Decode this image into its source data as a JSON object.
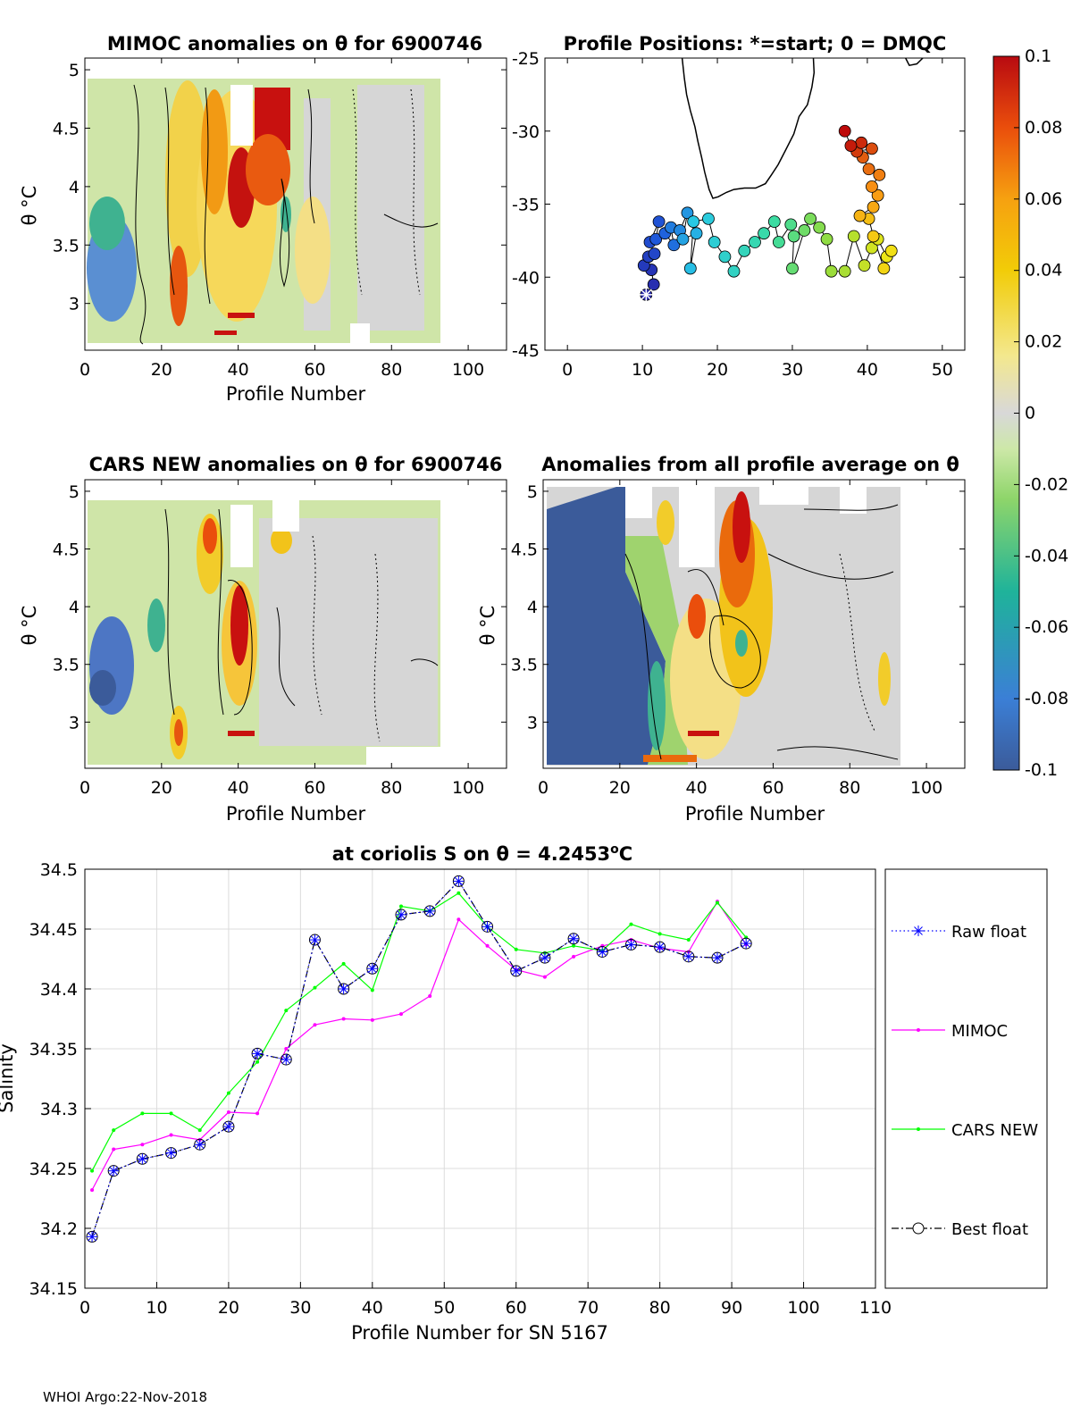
{
  "chart_data": [
    {
      "type": "heatmap",
      "title": "MIMOC anomalies on θ  for 6900746",
      "xlabel": "Profile Number",
      "ylabel": "θ °C",
      "xlim": [
        0,
        110
      ],
      "ylim": [
        2.6,
        5.1
      ],
      "xticks": [
        "0",
        "20",
        "40",
        "60",
        "80",
        "100"
      ],
      "yticks": [
        "3",
        "3.5",
        "4",
        "4.5",
        "5"
      ],
      "xtick_values": [
        0,
        20,
        40,
        60,
        80,
        100
      ],
      "ytick_values": [
        3,
        3.5,
        4,
        4.5,
        5
      ]
    },
    {
      "type": "scatter",
      "title": "Profile Positions: *=start; 0 = DMQC",
      "xlim": [
        -3,
        53
      ],
      "ylim": [
        -45,
        -25
      ],
      "xticks": [
        "0",
        "10",
        "20",
        "30",
        "40",
        "50"
      ],
      "yticks": [
        "-25",
        "-30",
        "-35",
        "-40",
        "-45"
      ],
      "xtick_values": [
        0,
        10,
        20,
        30,
        40,
        50
      ],
      "ytick_values": [
        -25,
        -30,
        -35,
        -40,
        -45
      ],
      "track": [
        [
          10.5,
          -41.2
        ],
        [
          11.5,
          -40.5
        ],
        [
          11.2,
          -39.5
        ],
        [
          10.2,
          -39.2
        ],
        [
          10.8,
          -38.6
        ],
        [
          11.6,
          -38.4
        ],
        [
          11.0,
          -37.6
        ],
        [
          12.2,
          -36.2
        ],
        [
          11.8,
          -37.4
        ],
        [
          13.0,
          -37.0
        ],
        [
          14.2,
          -37.8
        ],
        [
          13.8,
          -36.6
        ],
        [
          15.0,
          -36.8
        ],
        [
          16.0,
          -35.6
        ],
        [
          15.4,
          -37.4
        ],
        [
          17.2,
          -37.0
        ],
        [
          16.4,
          -39.4
        ],
        [
          16.8,
          -36.2
        ],
        [
          18.8,
          -36.0
        ],
        [
          19.6,
          -37.6
        ],
        [
          21.0,
          -38.6
        ],
        [
          22.2,
          -39.6
        ],
        [
          23.6,
          -38.2
        ],
        [
          25.0,
          -37.6
        ],
        [
          26.2,
          -37.0
        ],
        [
          27.6,
          -36.2
        ],
        [
          28.2,
          -37.6
        ],
        [
          29.8,
          -36.4
        ],
        [
          30.2,
          -37.2
        ],
        [
          30.0,
          -39.4
        ],
        [
          31.6,
          -36.8
        ],
        [
          32.4,
          -36.0
        ],
        [
          33.6,
          -36.6
        ],
        [
          34.6,
          -37.4
        ],
        [
          35.2,
          -39.6
        ],
        [
          37.0,
          -39.6
        ],
        [
          38.2,
          -37.2
        ],
        [
          39.6,
          -39.2
        ],
        [
          40.6,
          -38.0
        ],
        [
          41.4,
          -37.4
        ],
        [
          42.6,
          -38.6
        ],
        [
          43.2,
          -38.2
        ],
        [
          42.2,
          -39.4
        ],
        [
          40.8,
          -37.2
        ],
        [
          40.2,
          -36.0
        ],
        [
          39.0,
          -35.8
        ],
        [
          40.8,
          -35.2
        ],
        [
          41.4,
          -34.4
        ],
        [
          40.6,
          -33.8
        ],
        [
          41.6,
          -33.0
        ],
        [
          40.2,
          -32.6
        ],
        [
          39.4,
          -31.8
        ],
        [
          40.6,
          -31.2
        ],
        [
          38.6,
          -31.4
        ],
        [
          39.2,
          -30.8
        ],
        [
          37.8,
          -31.0
        ],
        [
          37.0,
          -30.0
        ]
      ],
      "coast": [
        [
          15.3,
          -25.0
        ],
        [
          15.6,
          -26.4
        ],
        [
          15.9,
          -27.5
        ],
        [
          16.4,
          -28.6
        ],
        [
          17.0,
          -29.7
        ],
        [
          17.4,
          -30.7
        ],
        [
          17.9,
          -31.8
        ],
        [
          18.3,
          -32.8
        ],
        [
          18.9,
          -34.0
        ],
        [
          19.4,
          -34.6
        ],
        [
          20.1,
          -34.5
        ],
        [
          21.2,
          -34.2
        ],
        [
          22.2,
          -34.0
        ],
        [
          23.6,
          -33.9
        ],
        [
          25.1,
          -33.9
        ],
        [
          26.4,
          -33.6
        ],
        [
          27.2,
          -33.0
        ],
        [
          28.1,
          -32.3
        ],
        [
          29.0,
          -31.4
        ],
        [
          30.2,
          -30.2
        ],
        [
          30.9,
          -29.0
        ],
        [
          32.0,
          -28.2
        ],
        [
          32.6,
          -27.0
        ],
        [
          32.9,
          -26.0
        ],
        [
          32.8,
          -25.0
        ]
      ],
      "coast2": [
        [
          45.1,
          -25.0
        ],
        [
          45.6,
          -25.5
        ],
        [
          46.6,
          -25.4
        ],
        [
          47.4,
          -25.0
        ]
      ]
    },
    {
      "type": "heatmap",
      "title": "CARS NEW anomalies on θ for 6900746",
      "xlabel": "Profile Number",
      "ylabel": "θ °C",
      "xlim": [
        0,
        110
      ],
      "ylim": [
        2.6,
        5.1
      ],
      "xticks": [
        "0",
        "20",
        "40",
        "60",
        "80",
        "100"
      ],
      "yticks": [
        "3",
        "3.5",
        "4",
        "4.5",
        "5"
      ],
      "xtick_values": [
        0,
        20,
        40,
        60,
        80,
        100
      ],
      "ytick_values": [
        3,
        3.5,
        4,
        4.5,
        5
      ]
    },
    {
      "type": "heatmap",
      "title": "Anomalies from all profile average on θ",
      "xlabel": "Profile Number",
      "ylabel": "θ °C",
      "xlim": [
        0,
        110
      ],
      "ylim": [
        2.6,
        5.1
      ],
      "xticks": [
        "0",
        "20",
        "40",
        "60",
        "80",
        "100"
      ],
      "yticks": [
        "3",
        "3.5",
        "4",
        "4.5",
        "5"
      ],
      "xtick_values": [
        0,
        20,
        40,
        60,
        80,
        100
      ],
      "ytick_values": [
        3,
        3.5,
        4,
        4.5,
        5
      ]
    },
    {
      "type": "line",
      "title_prefix": "at coriolis S on θ = 4.2453",
      "title_sup": "o",
      "title_suffix": "C",
      "xlabel": "Profile Number for SN 5167",
      "ylabel": "Salinity",
      "xlim": [
        0,
        110
      ],
      "ylim": [
        34.15,
        34.5
      ],
      "xticks": [
        "0",
        "10",
        "20",
        "30",
        "40",
        "50",
        "60",
        "70",
        "80",
        "90",
        "100",
        "110"
      ],
      "yticks": [
        "34.15",
        "34.2",
        "34.25",
        "34.3",
        "34.35",
        "34.4",
        "34.45",
        "34.5"
      ],
      "xtick_values": [
        0,
        10,
        20,
        30,
        40,
        50,
        60,
        70,
        80,
        90,
        100,
        110
      ],
      "ytick_values": [
        34.15,
        34.2,
        34.25,
        34.3,
        34.35,
        34.4,
        34.45,
        34.5
      ],
      "x": [
        1,
        4,
        8,
        12,
        16,
        20,
        24,
        28,
        32,
        36,
        40,
        44,
        48,
        52,
        56,
        60,
        64,
        68,
        72,
        76,
        80,
        84,
        88,
        92
      ],
      "series": [
        {
          "name": "Raw float",
          "color": "#0000ff",
          "values": [
            34.193,
            34.248,
            34.258,
            34.263,
            34.27,
            34.285,
            34.346,
            34.341,
            34.441,
            34.4,
            34.417,
            34.462,
            34.465,
            34.49,
            34.452,
            34.415,
            34.426,
            34.442,
            34.431,
            34.437,
            34.435,
            34.427,
            34.426,
            34.438
          ]
        },
        {
          "name": "MIMOC",
          "color": "#ff00ff",
          "values": [
            34.232,
            34.266,
            34.27,
            34.278,
            34.274,
            34.297,
            34.296,
            34.35,
            34.37,
            34.375,
            34.374,
            34.379,
            34.394,
            34.458,
            34.436,
            34.416,
            34.41,
            34.427,
            34.436,
            34.441,
            34.434,
            34.431,
            34.473,
            34.437
          ]
        },
        {
          "name": "CARS NEW",
          "color": "#00ff00",
          "values": [
            34.248,
            34.282,
            34.296,
            34.296,
            34.282,
            34.313,
            34.339,
            34.382,
            34.401,
            34.421,
            34.399,
            34.469,
            34.465,
            34.48,
            34.452,
            34.433,
            34.43,
            34.436,
            34.432,
            34.454,
            34.446,
            34.441,
            34.472,
            34.443
          ]
        },
        {
          "name": "Best float",
          "color": "#000000",
          "values": [
            34.193,
            34.248,
            34.258,
            34.263,
            34.27,
            34.285,
            34.346,
            34.341,
            34.441,
            34.4,
            34.417,
            34.462,
            34.465,
            34.49,
            34.452,
            34.415,
            34.426,
            34.442,
            34.431,
            34.437,
            34.435,
            34.427,
            34.426,
            34.438
          ]
        }
      ]
    }
  ],
  "colorbar": {
    "labels": [
      "0.1",
      "0.08",
      "0.06",
      "0.04",
      "0.02",
      "0",
      "-0.02",
      "-0.04",
      "-0.06",
      "-0.08",
      "-0.1"
    ]
  },
  "footer": "WHOI Argo:22-Nov-2018"
}
